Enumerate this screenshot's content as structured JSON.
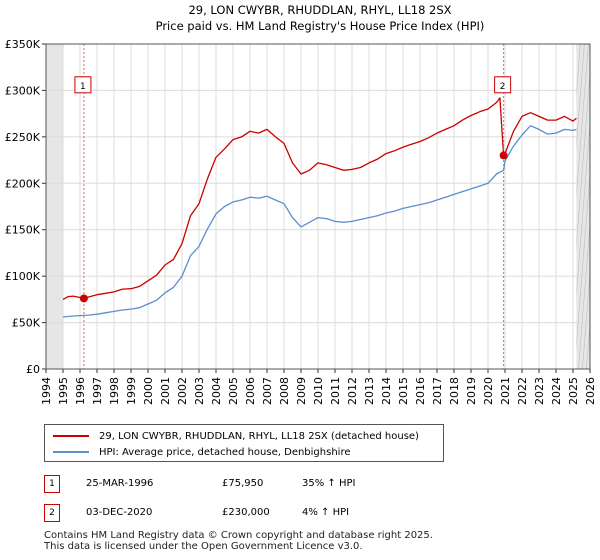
{
  "chart_data": {
    "type": "line",
    "title": "29, LON CWYBR, RHUDDLAN, RHYL, LL18 2SX",
    "subtitle": "Price paid vs. HM Land Registry's House Price Index (HPI)",
    "xlim": [
      1994,
      2026
    ],
    "ylim": [
      0,
      350000
    ],
    "y_ticks": [
      0,
      50000,
      100000,
      150000,
      200000,
      250000,
      300000,
      350000
    ],
    "y_tick_labels": [
      "£0",
      "£50K",
      "£100K",
      "£150K",
      "£200K",
      "£250K",
      "£300K",
      "£350K"
    ],
    "x_ticks": [
      1994,
      1995,
      1996,
      1997,
      1998,
      1999,
      2000,
      2001,
      2002,
      2003,
      2004,
      2005,
      2006,
      2007,
      2008,
      2009,
      2010,
      2011,
      2012,
      2013,
      2014,
      2015,
      2016,
      2017,
      2018,
      2019,
      2020,
      2021,
      2022,
      2023,
      2024,
      2025,
      2026
    ],
    "x_tick_labels": [
      "1994",
      "1995",
      "1996",
      "1997",
      "1998",
      "1999",
      "2000",
      "2001",
      "2002",
      "2003",
      "2004",
      "2005",
      "2006",
      "2007",
      "2008",
      "2009",
      "2010",
      "2011",
      "2012",
      "2013",
      "2014",
      "2015",
      "2016",
      "2017",
      "2018",
      "2019",
      "2020",
      "2021",
      "2022",
      "2023",
      "2024",
      "2025",
      "2026"
    ],
    "grid": true,
    "data_range": [
      1995.0,
      2025.2
    ],
    "series": [
      {
        "name": "29, LON CWYBR, RHUDDLAN, RHYL, LL18 2SX (detached house)",
        "color": "#cc0000",
        "x": [
          1995.0,
          1995.3,
          1995.6,
          1996.0,
          1996.23,
          1996.5,
          1997.0,
          1997.5,
          1998.0,
          1998.5,
          1999.0,
          1999.5,
          2000.0,
          2000.5,
          2001.0,
          2001.5,
          2002.0,
          2002.5,
          2003.0,
          2003.5,
          2004.0,
          2004.5,
          2005.0,
          2005.5,
          2006.0,
          2006.5,
          2007.0,
          2007.5,
          2008.0,
          2008.5,
          2009.0,
          2009.5,
          2010.0,
          2010.5,
          2011.0,
          2011.5,
          2012.0,
          2012.5,
          2013.0,
          2013.5,
          2014.0,
          2014.5,
          2015.0,
          2015.5,
          2016.0,
          2016.5,
          2017.0,
          2017.5,
          2018.0,
          2018.5,
          2019.0,
          2019.5,
          2020.0,
          2020.5,
          2020.7,
          2020.92,
          2021.0,
          2021.5,
          2022.0,
          2022.5,
          2023.0,
          2023.5,
          2024.0,
          2024.5,
          2025.0,
          2025.2
        ],
        "y": [
          75000,
          78000,
          78500,
          77000,
          75950,
          77500,
          80000,
          81500,
          83000,
          86000,
          86500,
          89000,
          95000,
          101000,
          112000,
          118000,
          135000,
          165000,
          178000,
          205000,
          228000,
          237000,
          247000,
          250000,
          256000,
          254000,
          258000,
          250000,
          243000,
          222000,
          210000,
          214000,
          222000,
          220000,
          217000,
          214000,
          215000,
          217000,
          222000,
          226000,
          232000,
          235000,
          239000,
          242000,
          245000,
          249000,
          254000,
          258000,
          262000,
          268000,
          273000,
          277000,
          280000,
          287000,
          292000,
          230000,
          232000,
          256000,
          272000,
          276000,
          272000,
          268000,
          268000,
          272000,
          267000,
          270000
        ]
      },
      {
        "name": "HPI: Average price, detached house, Denbighshire",
        "color": "#5b8fcc",
        "x": [
          1995.0,
          1995.5,
          1996.0,
          1996.5,
          1997.0,
          1997.5,
          1998.0,
          1998.5,
          1999.0,
          1999.5,
          2000.0,
          2000.5,
          2001.0,
          2001.5,
          2002.0,
          2002.5,
          2003.0,
          2003.5,
          2004.0,
          2004.5,
          2005.0,
          2005.5,
          2006.0,
          2006.5,
          2007.0,
          2007.5,
          2008.0,
          2008.5,
          2009.0,
          2009.5,
          2010.0,
          2010.5,
          2011.0,
          2011.5,
          2012.0,
          2012.5,
          2013.0,
          2013.5,
          2014.0,
          2014.5,
          2015.0,
          2015.5,
          2016.0,
          2016.5,
          2017.0,
          2017.5,
          2018.0,
          2018.5,
          2019.0,
          2019.5,
          2020.0,
          2020.5,
          2020.92,
          2021.0,
          2021.5,
          2022.0,
          2022.5,
          2023.0,
          2023.5,
          2024.0,
          2024.5,
          2025.0,
          2025.2
        ],
        "y": [
          56000,
          57000,
          57500,
          58000,
          59000,
          60500,
          62000,
          63500,
          64500,
          66000,
          70000,
          74000,
          82000,
          88000,
          100000,
          122000,
          132000,
          151000,
          167000,
          175000,
          180000,
          182000,
          185000,
          184000,
          186000,
          182000,
          178000,
          163000,
          153000,
          158000,
          163000,
          162000,
          159000,
          158000,
          159000,
          161000,
          163000,
          165000,
          168000,
          170000,
          173000,
          175000,
          177000,
          179000,
          182000,
          185000,
          188000,
          191000,
          194000,
          197000,
          200000,
          210000,
          214000,
          224000,
          240000,
          252000,
          262000,
          258000,
          253000,
          254000,
          258000,
          257000,
          258000
        ]
      }
    ],
    "annotations": [
      {
        "label": "1",
        "x": 1996.23,
        "y": 75950,
        "label_y": 305000
      },
      {
        "label": "2",
        "x": 2020.92,
        "y": 230000,
        "label_y": 305000
      }
    ]
  },
  "legend": {
    "items": [
      {
        "label": "29, LON CWYBR, RHUDDLAN, RHYL, LL18 2SX (detached house)",
        "color": "#cc0000"
      },
      {
        "label": "HPI: Average price, detached house, Denbighshire",
        "color": "#5b8fcc"
      }
    ]
  },
  "sales": [
    {
      "num": "1",
      "date": "25-MAR-1996",
      "price": "£75,950",
      "hpi": "35% ↑ HPI"
    },
    {
      "num": "2",
      "date": "03-DEC-2020",
      "price": "£230,000",
      "hpi": "4% ↑ HPI"
    }
  ],
  "footer": {
    "line1": "Contains HM Land Registry data © Crown copyright and database right 2025.",
    "line2": "This data is licensed under the Open Government Licence v3.0."
  }
}
